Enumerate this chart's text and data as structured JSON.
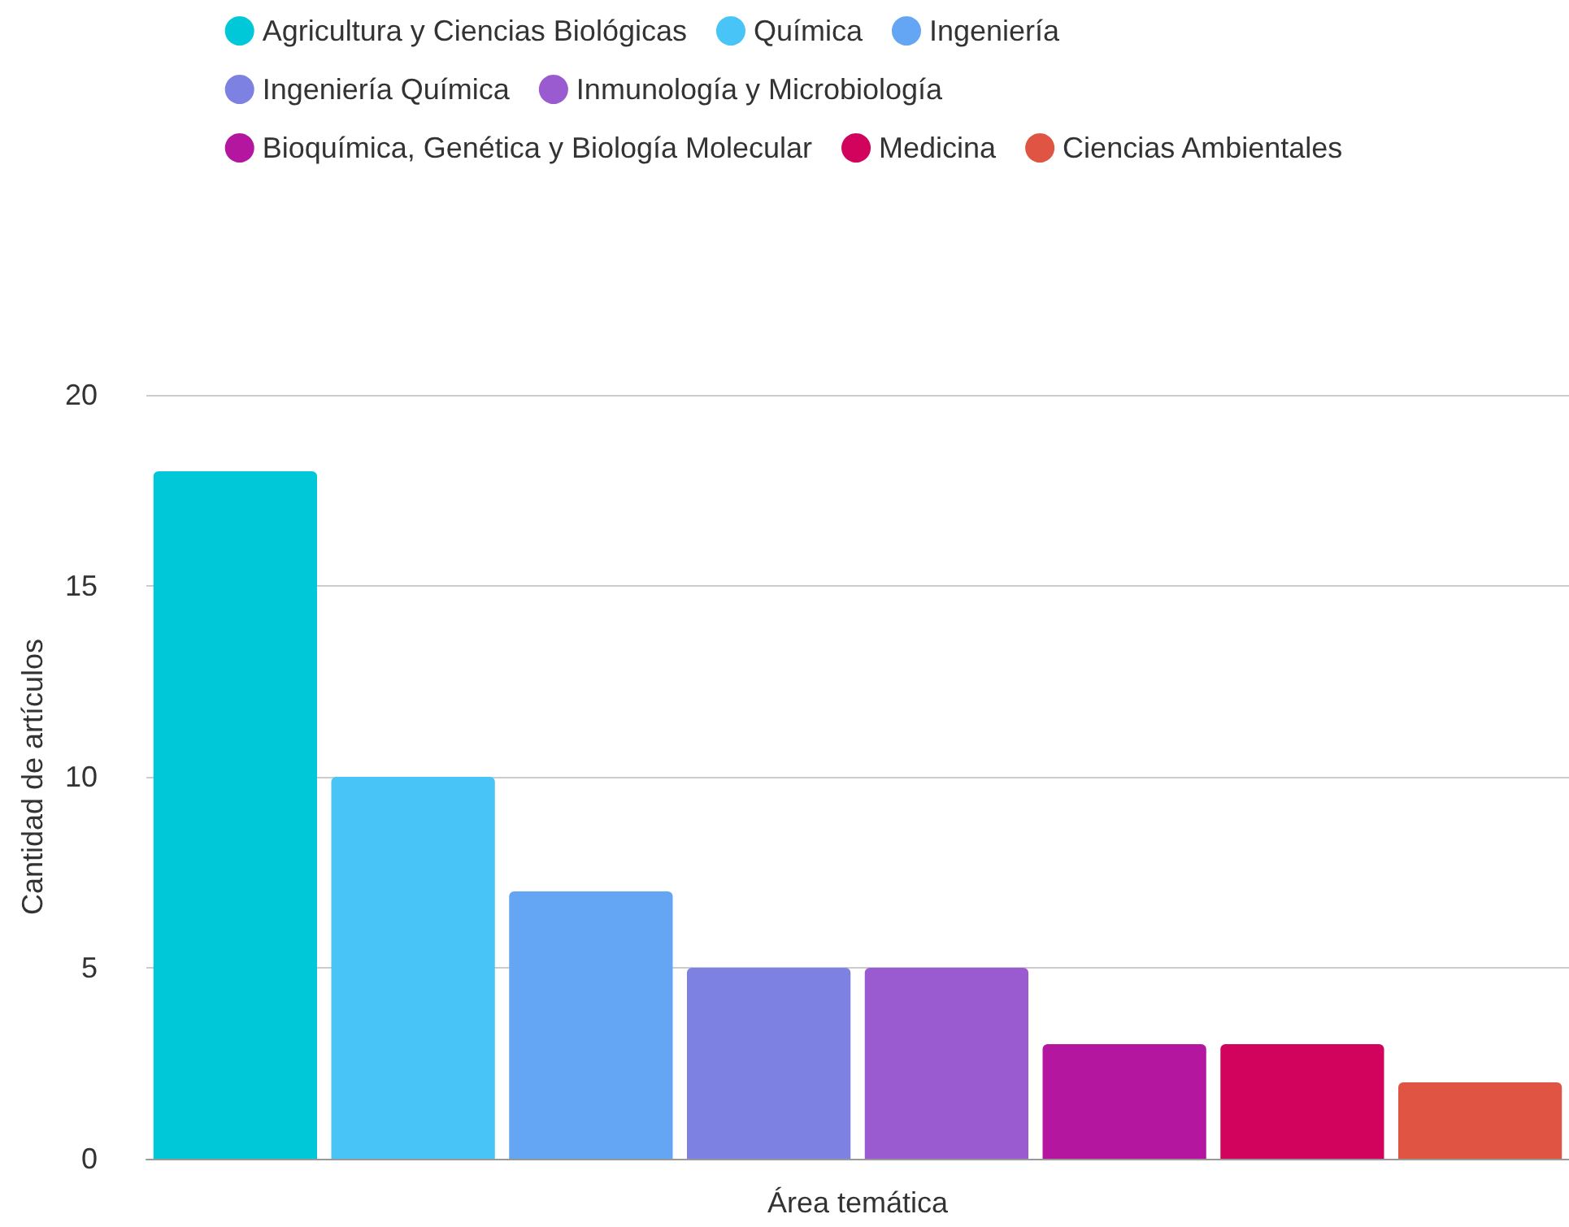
{
  "chart_data": {
    "type": "bar",
    "xlabel": "Área temática",
    "ylabel": "Cantidad de artículos",
    "categories": [
      null,
      null,
      null,
      null,
      null,
      null,
      null,
      null
    ],
    "series": [
      {
        "name": "Agricultura y Ciencias Biológicas",
        "color": "#00c8d8",
        "values": [
          18,
          null,
          null,
          null,
          null,
          null,
          null,
          null
        ]
      },
      {
        "name": "Química",
        "color": "#48c4f6",
        "values": [
          null,
          10,
          null,
          null,
          null,
          null,
          null,
          null
        ]
      },
      {
        "name": "Ingeniería",
        "color": "#64a6f4",
        "values": [
          null,
          null,
          7,
          null,
          null,
          null,
          null,
          null
        ]
      },
      {
        "name": "Ingeniería Química",
        "color": "#7d82e2",
        "values": [
          null,
          null,
          null,
          5,
          null,
          null,
          null,
          null
        ]
      },
      {
        "name": "Inmunología y Microbiología",
        "color": "#9b5bd0",
        "values": [
          null,
          null,
          null,
          null,
          5,
          null,
          null,
          null
        ]
      },
      {
        "name": "Bioquímica, Genética y Biología Molecular",
        "color": "#b5169f",
        "values": [
          null,
          null,
          null,
          null,
          null,
          3,
          null,
          null
        ]
      },
      {
        "name": "Medicina",
        "color": "#d2035c",
        "values": [
          null,
          null,
          null,
          null,
          null,
          null,
          3,
          null
        ]
      },
      {
        "name": "Ciencias Ambientales",
        "color": "#e05444",
        "values": [
          null,
          null,
          null,
          null,
          null,
          null,
          null,
          2
        ]
      }
    ],
    "ylim": [
      0,
      20
    ],
    "yticks": [
      0,
      5,
      10,
      15,
      20
    ],
    "grid": "y",
    "legend": "top"
  }
}
